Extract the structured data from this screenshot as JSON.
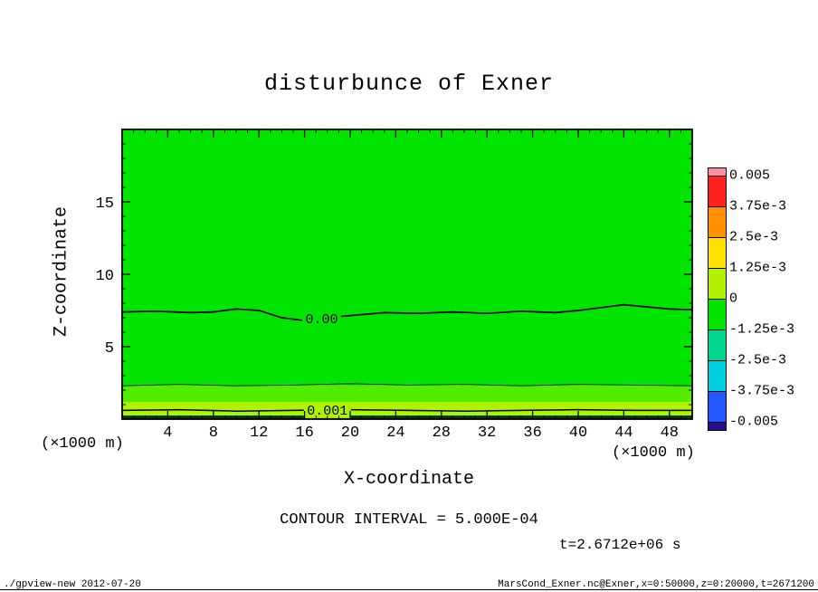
{
  "title": "disturbunce of Exner",
  "footer": {
    "left": "./gpview-new  2012-07-20",
    "right": "MarsCond_Exner.nc@Exner,x=0:50000,z=0:20000,t=2671200"
  },
  "chart_data": {
    "type": "heatmap",
    "title": "disturbunce of Exner",
    "xlabel": "X-coordinate",
    "ylabel": "Z-coordinate",
    "x_axis_unit": "(×1000 m)",
    "y_axis_unit": "(×1000 m)",
    "xlim": [
      0,
      50
    ],
    "ylim": [
      0,
      20
    ],
    "x_major_ticks": [
      4,
      8,
      12,
      16,
      20,
      24,
      28,
      32,
      36,
      40,
      44,
      48
    ],
    "x_minor_step": 1,
    "y_major_ticks": [
      5,
      10,
      15
    ],
    "y_minor_step": 1,
    "contour_interval_label": "CONTOUR INTERVAL = 5.000E-04",
    "time_label": "t=2.6712e+06 s",
    "field": {
      "base_color": "#00e400",
      "bands": [
        {
          "z_from": 1.2,
          "z_to": 2.35,
          "color": "#52ec00"
        },
        {
          "z_from": 0.25,
          "z_to": 1.2,
          "color": "#aef400"
        },
        {
          "z_from": 0.0,
          "z_to": 0.25,
          "color": "#063806"
        }
      ]
    },
    "contours": [
      {
        "level": 0,
        "label": "0.00",
        "label_x": 17.5,
        "label_bg": "#00e400",
        "width": 1.7,
        "points": [
          [
            0,
            7.4
          ],
          [
            3,
            7.45
          ],
          [
            6,
            7.35
          ],
          [
            8,
            7.4
          ],
          [
            10,
            7.6
          ],
          [
            12,
            7.5
          ],
          [
            14,
            7.0
          ],
          [
            16,
            6.8
          ],
          [
            18,
            7.0
          ],
          [
            20,
            7.15
          ],
          [
            23,
            7.35
          ],
          [
            26,
            7.3
          ],
          [
            29,
            7.4
          ],
          [
            32,
            7.3
          ],
          [
            35,
            7.45
          ],
          [
            38,
            7.35
          ],
          [
            40,
            7.5
          ],
          [
            42,
            7.7
          ],
          [
            44,
            7.9
          ],
          [
            46,
            7.75
          ],
          [
            48,
            7.6
          ],
          [
            50,
            7.55
          ]
        ]
      },
      {
        "level": 0.0005,
        "label": "",
        "label_x": null,
        "label_bg": "",
        "width": 0.8,
        "points": [
          [
            0,
            2.3
          ],
          [
            5,
            2.4
          ],
          [
            10,
            2.3
          ],
          [
            15,
            2.35
          ],
          [
            20,
            2.45
          ],
          [
            25,
            2.35
          ],
          [
            30,
            2.4
          ],
          [
            35,
            2.3
          ],
          [
            40,
            2.4
          ],
          [
            45,
            2.35
          ],
          [
            50,
            2.3
          ]
        ]
      },
      {
        "level": 0.001,
        "label": "0.001",
        "label_x": 18,
        "label_bg": "#aef400",
        "width": 1.5,
        "points": [
          [
            0,
            0.6
          ],
          [
            5,
            0.65
          ],
          [
            10,
            0.55
          ],
          [
            15,
            0.6
          ],
          [
            20,
            0.65
          ],
          [
            25,
            0.6
          ],
          [
            30,
            0.55
          ],
          [
            35,
            0.6
          ],
          [
            40,
            0.65
          ],
          [
            45,
            0.6
          ],
          [
            50,
            0.6
          ]
        ]
      }
    ],
    "colorbar": {
      "labels": [
        "0.005",
        "3.75e-3",
        "2.5e-3",
        "1.25e-3",
        "0",
        "-1.25e-3",
        "-2.5e-3",
        "-3.75e-3",
        "-0.005"
      ],
      "colors": [
        "#ff8fa0",
        "#ff2020",
        "#ff9000",
        "#ffe000",
        "#b0f000",
        "#00e400",
        "#00d890",
        "#00cfe0",
        "#2458ff",
        "#221090"
      ]
    }
  }
}
